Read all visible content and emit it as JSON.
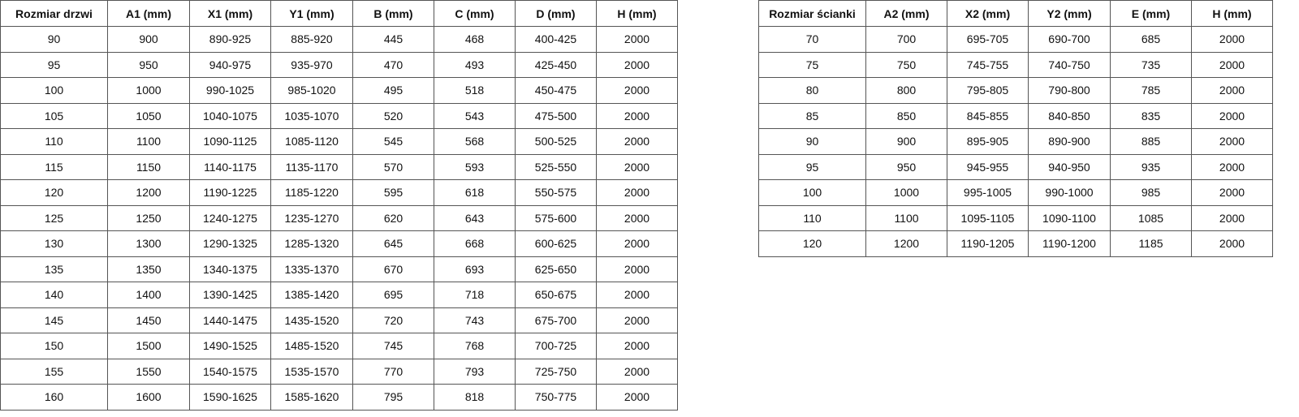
{
  "door_table": {
    "headers": [
      "Rozmiar drzwi",
      "A1 (mm)",
      "X1 (mm)",
      "Y1 (mm)",
      "B (mm)",
      "C (mm)",
      "D (mm)",
      "H (mm)"
    ],
    "rows": [
      [
        "90",
        "900",
        "890-925",
        "885-920",
        "445",
        "468",
        "400-425",
        "2000"
      ],
      [
        "95",
        "950",
        "940-975",
        "935-970",
        "470",
        "493",
        "425-450",
        "2000"
      ],
      [
        "100",
        "1000",
        "990-1025",
        "985-1020",
        "495",
        "518",
        "450-475",
        "2000"
      ],
      [
        "105",
        "1050",
        "1040-1075",
        "1035-1070",
        "520",
        "543",
        "475-500",
        "2000"
      ],
      [
        "110",
        "1100",
        "1090-1125",
        "1085-1120",
        "545",
        "568",
        "500-525",
        "2000"
      ],
      [
        "115",
        "1150",
        "1140-1175",
        "1135-1170",
        "570",
        "593",
        "525-550",
        "2000"
      ],
      [
        "120",
        "1200",
        "1190-1225",
        "1185-1220",
        "595",
        "618",
        "550-575",
        "2000"
      ],
      [
        "125",
        "1250",
        "1240-1275",
        "1235-1270",
        "620",
        "643",
        "575-600",
        "2000"
      ],
      [
        "130",
        "1300",
        "1290-1325",
        "1285-1320",
        "645",
        "668",
        "600-625",
        "2000"
      ],
      [
        "135",
        "1350",
        "1340-1375",
        "1335-1370",
        "670",
        "693",
        "625-650",
        "2000"
      ],
      [
        "140",
        "1400",
        "1390-1425",
        "1385-1420",
        "695",
        "718",
        "650-675",
        "2000"
      ],
      [
        "145",
        "1450",
        "1440-1475",
        "1435-1520",
        "720",
        "743",
        "675-700",
        "2000"
      ],
      [
        "150",
        "1500",
        "1490-1525",
        "1485-1520",
        "745",
        "768",
        "700-725",
        "2000"
      ],
      [
        "155",
        "1550",
        "1540-1575",
        "1535-1570",
        "770",
        "793",
        "725-750",
        "2000"
      ],
      [
        "160",
        "1600",
        "1590-1625",
        "1585-1620",
        "795",
        "818",
        "750-775",
        "2000"
      ]
    ]
  },
  "wall_table": {
    "headers": [
      "Rozmiar ścianki",
      "A2 (mm)",
      "X2 (mm)",
      "Y2 (mm)",
      "E (mm)",
      "H (mm)"
    ],
    "rows": [
      [
        "70",
        "700",
        "695-705",
        "690-700",
        "685",
        "2000"
      ],
      [
        "75",
        "750",
        "745-755",
        "740-750",
        "735",
        "2000"
      ],
      [
        "80",
        "800",
        "795-805",
        "790-800",
        "785",
        "2000"
      ],
      [
        "85",
        "850",
        "845-855",
        "840-850",
        "835",
        "2000"
      ],
      [
        "90",
        "900",
        "895-905",
        "890-900",
        "885",
        "2000"
      ],
      [
        "95",
        "950",
        "945-955",
        "940-950",
        "935",
        "2000"
      ],
      [
        "100",
        "1000",
        "995-1005",
        "990-1000",
        "985",
        "2000"
      ],
      [
        "110",
        "1100",
        "1095-1105",
        "1090-1100",
        "1085",
        "2000"
      ],
      [
        "120",
        "1200",
        "1190-1205",
        "1190-1200",
        "1185",
        "2000"
      ]
    ]
  }
}
